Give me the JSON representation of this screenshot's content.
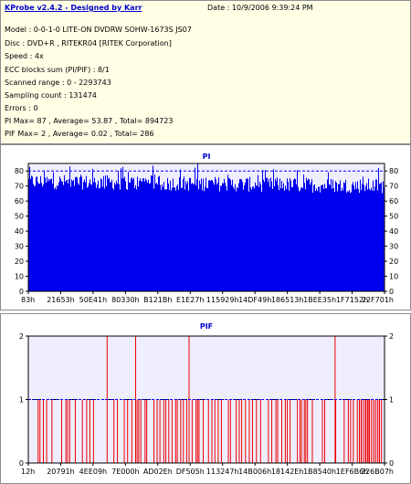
{
  "info": {
    "title": "KProbe v2.4.2 - Designed by Karr",
    "date": "Date : 10/9/2006 9:39:24 PM",
    "lines": [
      "Model : 0-0-1-0 LITE-ON DVDRW SOHW-1673S JS07",
      "Disc : DVD+R , RITEKR04 [RITEK Corporation]",
      "Speed : 4x",
      "ECC blocks sum (PI/PIF) : 8/1",
      "Scanned range : 0 - 2293743",
      "Sampling count : 131474",
      "Errors : 0",
      "PI Max= 87 , Average= 53.87 , Total= 894723",
      "PIF Max= 2 , Average= 0.02 , Total= 286"
    ]
  },
  "colors": {
    "info_bg": "#ffffe6",
    "title": "#0000cc",
    "pi_bar": "#0000ee",
    "pif_bar": "#ee0000",
    "plot_bg": "#eeeeff",
    "ref_line": "#0000ff"
  },
  "chart_data": [
    {
      "type": "bar",
      "title": "PI",
      "xlabel": "",
      "ylabel": "",
      "ylim": [
        0,
        85
      ],
      "yticks": [
        0,
        10,
        20,
        30,
        40,
        50,
        60,
        70,
        80
      ],
      "xticks": [
        "83h",
        "21653h",
        "50E41h",
        "80330h",
        "B121Bh",
        "E1E27h",
        "115929h",
        "14DF49h",
        "186513h",
        "1BEE35h",
        "1F7152h",
        "22F701h"
      ],
      "reference_line": 80,
      "values_summary": {
        "max": 87,
        "average": 53.87,
        "typical_range": [
          60,
          80
        ]
      },
      "grid": false,
      "legend": "none"
    },
    {
      "type": "bar",
      "title": "PIF",
      "xlabel": "",
      "ylabel": "",
      "ylim": [
        0,
        2
      ],
      "yticks": [
        0,
        1,
        2
      ],
      "xticks": [
        "12h",
        "20791h",
        "4EE09h",
        "7E000h",
        "AD02Eh",
        "DF505h",
        "113247h",
        "14B006h",
        "18142Eh",
        "1B8540h",
        "1EF6B6h",
        "226B07h"
      ],
      "reference_line": 1,
      "spikes_value_2": [
        0.22,
        0.3,
        0.45,
        0.86
      ],
      "values_summary": {
        "max": 2,
        "average": 0.02
      },
      "grid": true,
      "legend": "none"
    }
  ]
}
